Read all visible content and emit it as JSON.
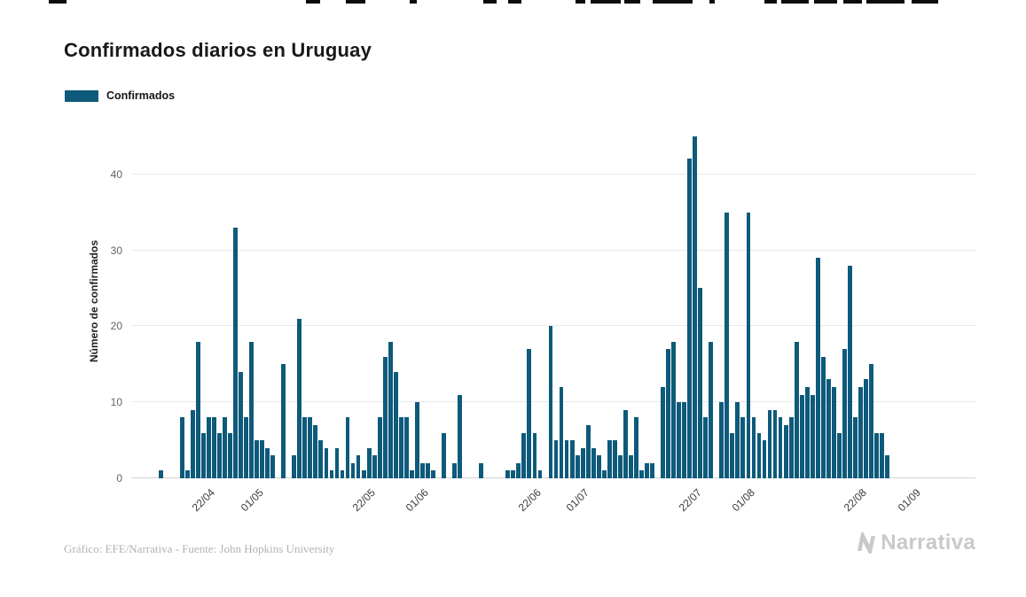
{
  "page": {
    "title": "Confirmados diarios en Uruguay",
    "legend": {
      "label": "Confirmados",
      "swatch_color": "#0E5A7B"
    },
    "footer": {
      "credit": "Gráfico: EFE/Narrativa - Fuente: John Hopkins University"
    },
    "brand": {
      "name": "Narrativa",
      "color": "#C9C9C9"
    }
  },
  "decor": {
    "top_edge_segments": [
      [
        55,
        20
      ],
      [
        345,
        16
      ],
      [
        390,
        22
      ],
      [
        462,
        8
      ],
      [
        545,
        15
      ],
      [
        573,
        15
      ],
      [
        649,
        11
      ],
      [
        666,
        34
      ],
      [
        704,
        18
      ],
      [
        736,
        45
      ],
      [
        800,
        6
      ],
      [
        862,
        14
      ],
      [
        881,
        31
      ],
      [
        918,
        26
      ],
      [
        951,
        21
      ],
      [
        977,
        43
      ],
      [
        1028,
        30
      ]
    ]
  },
  "chart_data": {
    "type": "bar",
    "title": "Confirmados diarios en Uruguay",
    "xlabel": "",
    "ylabel": "Número de confirmados",
    "series_name": "Confirmados",
    "bar_color": "#0E5A7B",
    "grid": "horizontal",
    "legend_position": "top-left",
    "ylim": [
      0,
      46.6
    ],
    "y_ticks": [
      0,
      10,
      20,
      30,
      40
    ],
    "x_domain_start": "08/04",
    "x_total_days": 158,
    "first_bar_offset_days": 5,
    "x_ticks": [
      {
        "label": "22/04",
        "day": 14
      },
      {
        "label": "01/05",
        "day": 23
      },
      {
        "label": "22/05",
        "day": 44
      },
      {
        "label": "01/06",
        "day": 54
      },
      {
        "label": "22/06",
        "day": 75
      },
      {
        "label": "01/07",
        "day": 84
      },
      {
        "label": "22/07",
        "day": 105
      },
      {
        "label": "01/08",
        "day": 115
      },
      {
        "label": "22/08",
        "day": 136
      },
      {
        "label": "01/09",
        "day": 146
      }
    ],
    "dates": [
      "13/04",
      "14/04",
      "15/04",
      "16/04",
      "17/04",
      "18/04",
      "19/04",
      "20/04",
      "21/04",
      "22/04",
      "23/04",
      "24/04",
      "25/04",
      "26/04",
      "27/04",
      "28/04",
      "29/04",
      "30/04",
      "01/05",
      "02/05",
      "03/05",
      "04/05",
      "05/05",
      "06/05",
      "07/05",
      "08/05",
      "09/05",
      "10/05",
      "11/05",
      "12/05",
      "13/05",
      "14/05",
      "15/05",
      "16/05",
      "17/05",
      "18/05",
      "19/05",
      "20/05",
      "21/05",
      "22/05",
      "23/05",
      "24/05",
      "25/05",
      "26/05",
      "27/05",
      "28/05",
      "29/05",
      "30/05",
      "31/05",
      "01/06",
      "02/06",
      "03/06",
      "04/06",
      "05/06",
      "06/06",
      "07/06",
      "08/06",
      "09/06",
      "10/06",
      "11/06",
      "12/06",
      "13/06",
      "14/06",
      "15/06",
      "16/06",
      "17/06",
      "18/06",
      "19/06",
      "20/06",
      "21/06",
      "22/06",
      "23/06",
      "24/06",
      "25/06",
      "26/06",
      "27/06",
      "28/06",
      "29/06",
      "30/06",
      "01/07",
      "02/07",
      "03/07",
      "04/07",
      "05/07",
      "06/07",
      "07/07",
      "08/07",
      "09/07",
      "10/07",
      "11/07",
      "12/07",
      "13/07",
      "14/07",
      "15/07",
      "16/07",
      "17/07",
      "18/07",
      "19/07",
      "20/07",
      "21/07",
      "22/07",
      "23/07",
      "24/07",
      "25/07",
      "26/07",
      "27/07",
      "28/07",
      "29/07",
      "30/07",
      "31/07",
      "01/08",
      "02/08",
      "03/08",
      "04/08",
      "05/08",
      "06/08",
      "07/08",
      "08/08",
      "09/08",
      "10/08",
      "11/08",
      "12/08",
      "13/08",
      "14/08",
      "15/08",
      "16/08",
      "17/08",
      "18/08",
      "19/08",
      "20/08",
      "21/08",
      "22/08",
      "23/08",
      "24/08",
      "25/08",
      "26/08",
      "27/08",
      "28/08"
    ],
    "values": [
      1,
      0,
      0,
      0,
      8,
      1,
      9,
      18,
      6,
      8,
      8,
      6,
      8,
      6,
      33,
      14,
      8,
      18,
      5,
      5,
      4,
      3,
      0,
      15,
      0,
      3,
      21,
      8,
      8,
      7,
      5,
      4,
      1,
      4,
      1,
      8,
      2,
      3,
      1,
      4,
      3,
      8,
      16,
      18,
      14,
      8,
      8,
      1,
      10,
      2,
      2,
      1,
      0,
      6,
      0,
      2,
      11,
      0,
      0,
      0,
      2,
      0,
      0,
      0,
      0,
      1,
      1,
      2,
      6,
      17,
      6,
      1,
      0,
      20,
      5,
      12,
      5,
      5,
      3,
      4,
      7,
      4,
      3,
      1,
      5,
      5,
      3,
      9,
      3,
      8,
      1,
      2,
      2,
      0,
      12,
      17,
      18,
      10,
      10,
      42,
      45,
      25,
      8,
      18,
      0,
      10,
      35,
      6,
      10,
      8,
      35,
      8,
      6,
      5,
      9,
      9,
      8,
      7,
      8,
      18,
      11,
      12,
      11,
      29,
      16,
      13,
      12,
      6,
      17,
      28,
      8,
      12,
      13,
      15,
      6,
      6,
      3,
      0
    ]
  }
}
